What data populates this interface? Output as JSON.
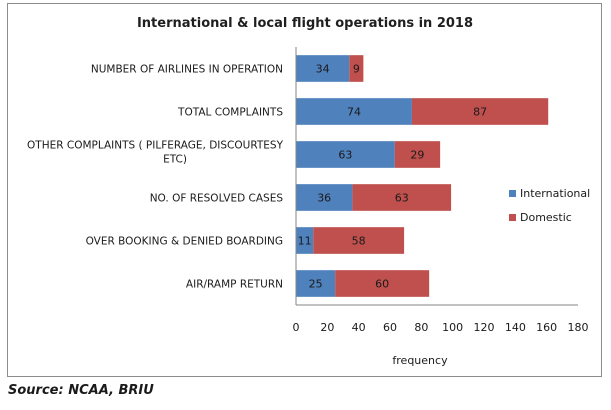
{
  "chart_data": {
    "type": "bar",
    "orientation": "horizontal",
    "stacked": true,
    "title": "International & local flight operations in 2018",
    "xlabel": "frequency",
    "ylabel": "",
    "xlim": [
      0,
      180
    ],
    "xticks": [
      0,
      20,
      40,
      60,
      80,
      100,
      120,
      140,
      160,
      180
    ],
    "grid": false,
    "legend_position": "right",
    "categories": [
      [
        "NUMBER OF AIRLINES IN OPERATION"
      ],
      [
        "TOTAL COMPLAINTS"
      ],
      [
        "OTHER COMPLAINTS ( PILFERAGE, DISCOURTESY",
        "ETC)"
      ],
      [
        "NO. OF RESOLVED CASES"
      ],
      [
        "OVER BOOKING & DENIED  BOARDING"
      ],
      [
        "AIR/RAMP RETURN"
      ]
    ],
    "series": [
      {
        "name": "International",
        "color": "#4f81bd",
        "values": [
          34,
          74,
          63,
          36,
          11,
          25
        ]
      },
      {
        "name": "Domestic",
        "color": "#c0504d",
        "values": [
          9,
          87,
          29,
          63,
          58,
          60
        ]
      }
    ]
  },
  "source": "Source: NCAA, BRIU"
}
